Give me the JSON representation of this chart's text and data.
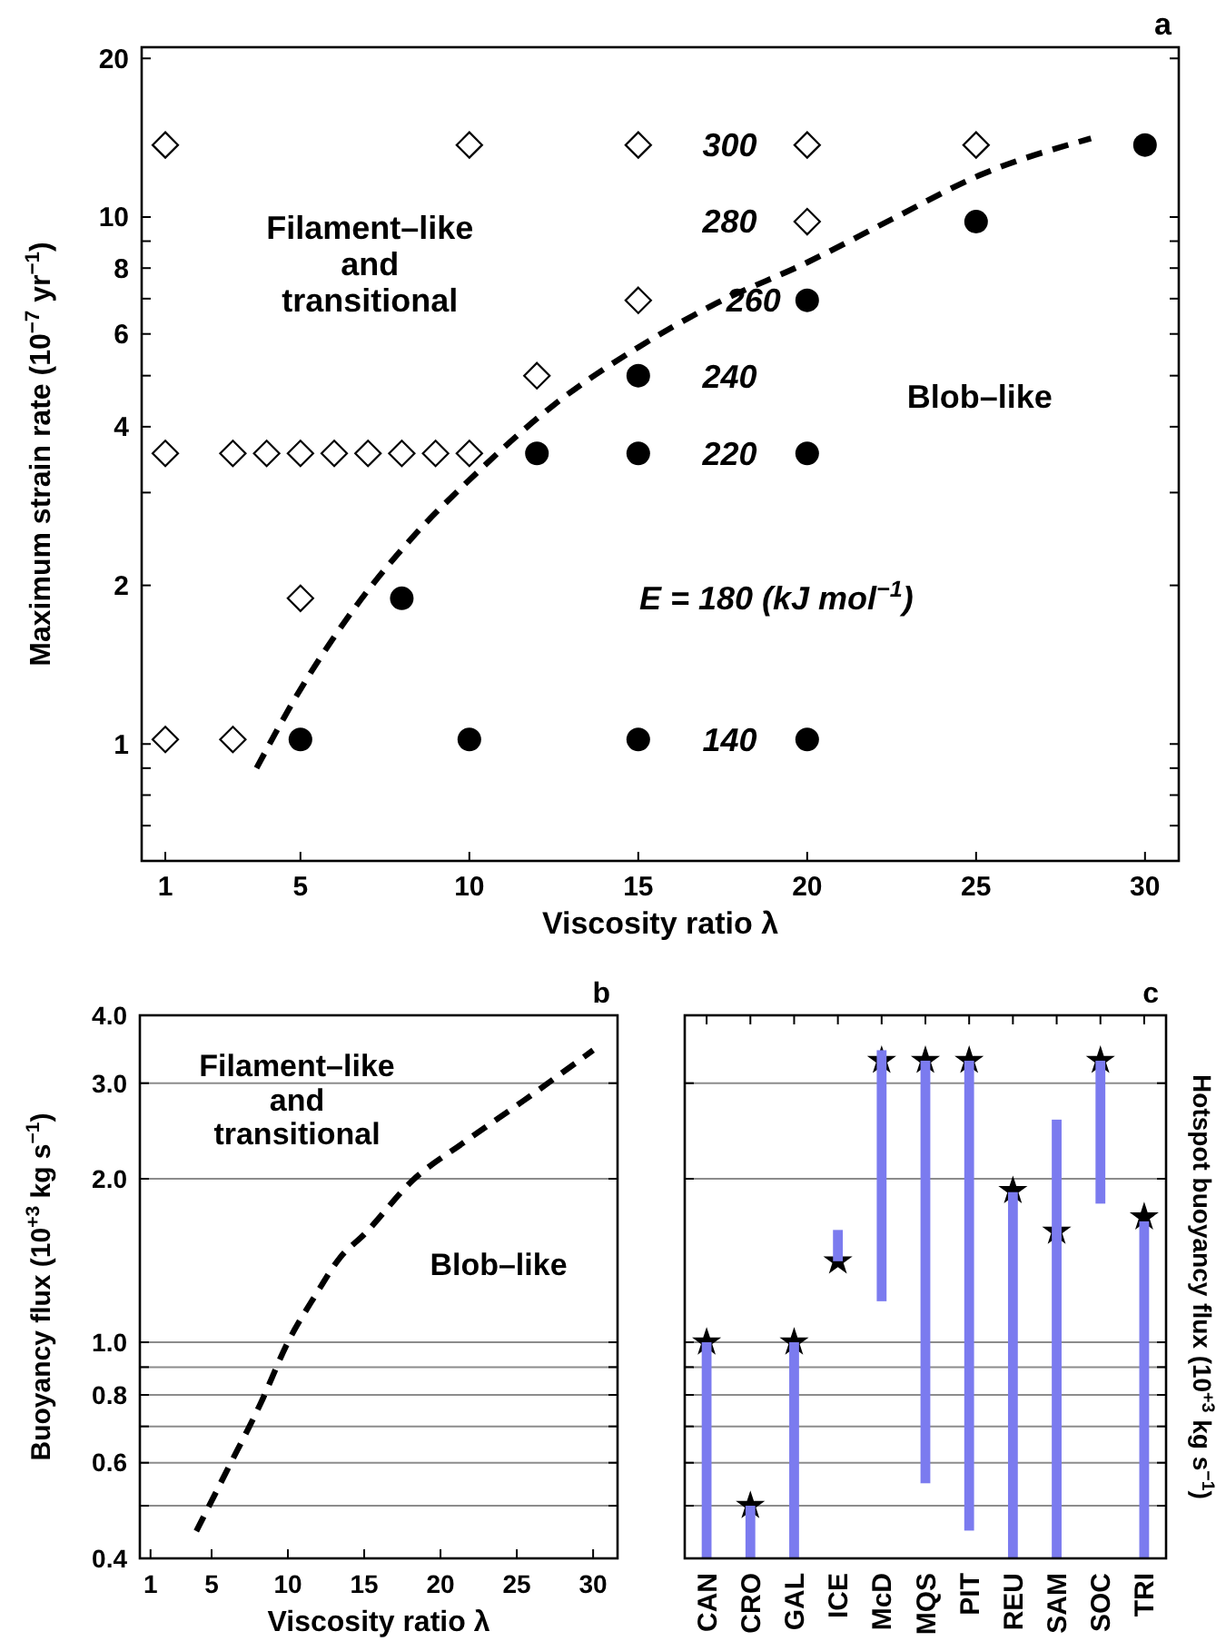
{
  "chart_data": [
    {
      "type": "scatter",
      "title": "a",
      "xlabel": "Viscosity ratio λ",
      "ylabel": "Maximum strain rate (10$^{−7}$ yr$^{−1}$)",
      "log": "y",
      "xlim": [
        0.3,
        31
      ],
      "xticks": [
        1,
        5,
        10,
        15,
        20,
        25,
        30
      ],
      "ylim": [
        0.6,
        21
      ],
      "yticks": [
        {
          "value": 0.7,
          "label": null
        },
        {
          "value": 0.8,
          "label": null
        },
        {
          "value": 0.9,
          "label": null
        },
        1,
        2,
        {
          "value": 3,
          "label": null
        },
        4,
        {
          "value": 5,
          "label": null
        },
        6,
        {
          "value": 7,
          "label": null
        },
        8,
        {
          "value": 9,
          "label": null
        },
        10,
        20
      ],
      "series": [
        {
          "marker": "diamond",
          "color": "#000000",
          "x": [
            1,
            10,
            15,
            20,
            25,
            20,
            15,
            12,
            1,
            3,
            4,
            5,
            6,
            7,
            8,
            9,
            10,
            5,
            1,
            3
          ],
          "values": [
            13.7,
            13.7,
            13.7,
            13.7,
            13.7,
            9.8,
            6.95,
            5.0,
            3.56,
            3.56,
            3.56,
            3.56,
            3.56,
            3.56,
            3.56,
            3.56,
            3.56,
            1.89,
            1.02,
            1.02
          ]
        },
        {
          "marker": "circle",
          "color": "#000000",
          "x": [
            30,
            25,
            20,
            15,
            12,
            15,
            20,
            8,
            5,
            10,
            15,
            20
          ],
          "values": [
            13.7,
            9.8,
            6.95,
            5.0,
            3.56,
            3.56,
            3.56,
            1.89,
            1.02,
            1.02,
            1.02,
            1.02
          ]
        },
        {
          "type": "line",
          "marker": "none",
          "line_style": "dashed",
          "color": "#000000",
          "x": [
            3.7,
            5,
            6.6,
            8.3,
            10,
            12.5,
            15,
            17.2,
            20,
            22.5,
            25.1,
            28.4
          ],
          "values": [
            0.9,
            1.27,
            1.81,
            2.46,
            3.17,
            4.4,
            5.66,
            6.8,
            8.2,
            9.9,
            12.0,
            14.1
          ]
        }
      ],
      "annotations": [
        "Filament–like\nand\ntransitional",
        "Blob–like",
        "300",
        "280",
        "260",
        "240",
        "220",
        "E = 180 (kJ mol$^{−1}$)",
        "140"
      ]
    },
    {
      "type": "line",
      "title": "b",
      "xlabel": "Viscosity ratio λ",
      "ylabel": "Buoyancy flux (10$^{+3}$ kg s$^{−1}$)",
      "log": "y",
      "grid": "y",
      "xlim": [
        0.3,
        31.6
      ],
      "xticks": [
        1,
        5,
        10,
        15,
        20,
        25,
        30
      ],
      "ylim": [
        0.4,
        4.0
      ],
      "yticks": [
        {
          "value": 0.4,
          "label": "0.4"
        },
        {
          "value": 0.5,
          "label": null
        },
        {
          "value": 0.6,
          "label": "0.6"
        },
        {
          "value": 0.7,
          "label": null
        },
        {
          "value": 0.8,
          "label": "0.8"
        },
        {
          "value": 0.9,
          "label": null
        },
        {
          "value": 1.0,
          "label": "1.0"
        },
        {
          "value": 2.0,
          "label": "2.0"
        },
        {
          "value": 3.0,
          "label": "3.0"
        },
        {
          "value": 4.0,
          "label": "4.0"
        }
      ],
      "series": [
        {
          "line_style": "dashed",
          "color": "#000000",
          "x": [
            4,
            6,
            8.2,
            10,
            11.8,
            13.4,
            15,
            18.2,
            21.4,
            25.4,
            30
          ],
          "values": [
            0.449,
            0.58,
            0.77,
            1.0,
            1.22,
            1.43,
            1.58,
            1.99,
            2.32,
            2.78,
            3.45
          ]
        }
      ],
      "annotations": [
        "Filament–like\nand\ntransitional",
        "Blob–like"
      ]
    },
    {
      "type": "bar",
      "title": "c",
      "y2label": "Hotspot buoyancy flux (10$^{+3}$ kg s$^{−1}$)",
      "log": "y",
      "grid": "y",
      "tick_labels": "x",
      "ylim": [
        0.4,
        4.0
      ],
      "yticks": [
        {
          "value": 0.4,
          "label": null
        },
        {
          "value": 0.5,
          "label": null
        },
        {
          "value": 0.6,
          "label": null
        },
        {
          "value": 0.7,
          "label": null
        },
        {
          "value": 0.8,
          "label": null
        },
        {
          "value": 0.9,
          "label": null
        },
        {
          "value": 1.0,
          "label": null
        },
        {
          "value": 2.0,
          "label": null
        },
        {
          "value": 3.0,
          "label": null
        },
        {
          "value": 4.0,
          "label": null
        }
      ],
      "categories": [
        "CAN",
        "CRO",
        "GAL",
        "ICE",
        "McD",
        "MQS",
        "PIT",
        "REU",
        "SAM",
        "SOC",
        "TRI"
      ],
      "series": [
        {
          "color": "#7b7bef",
          "base": [
            0.4,
            0.4,
            0.4,
            1.41,
            1.19,
            0.55,
            0.45,
            0.4,
            0.4,
            1.8,
            0.4
          ],
          "values": [
            0.6,
            0.1,
            0.6,
            0.2,
            2.26,
            2.75,
            2.85,
            1.49,
            2.17,
            1.5,
            1.27
          ]
        },
        {
          "type": "scatter",
          "marker": "star",
          "color": "#000000",
          "x": [
            "CAN",
            "CRO",
            "GAL",
            "ICE",
            "McD",
            "MQS",
            "PIT",
            "REU",
            "SAM",
            "SOC",
            "TRI"
          ],
          "values": [
            1.0,
            0.5,
            1.0,
            1.41,
            3.3,
            3.3,
            3.3,
            1.9,
            1.6,
            3.3,
            1.7
          ]
        }
      ]
    }
  ]
}
